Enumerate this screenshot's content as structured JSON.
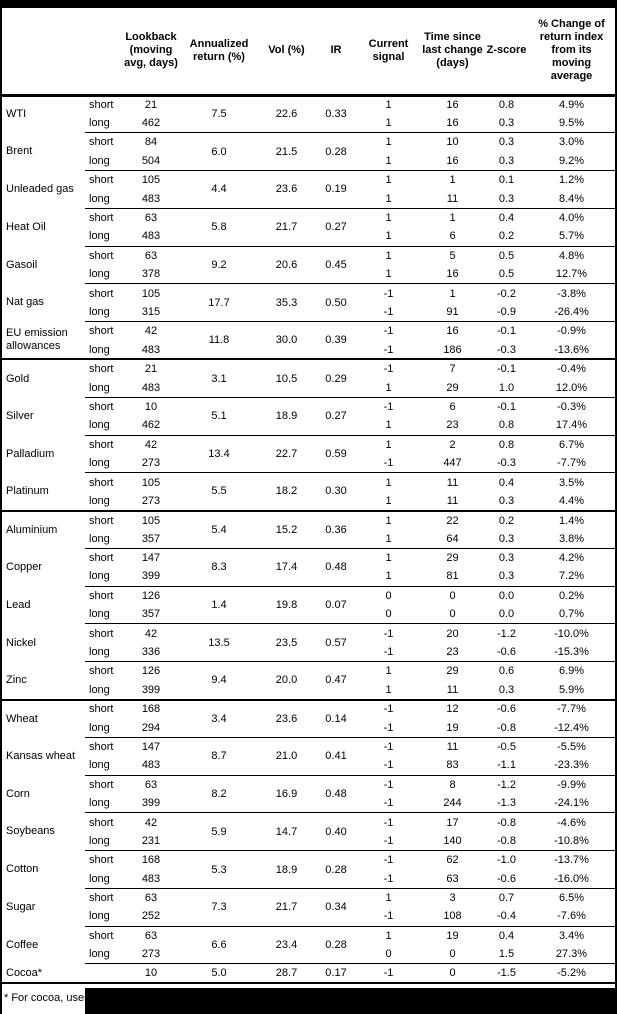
{
  "table": {
    "column_headers": [
      "",
      "",
      "Lookback\n(moving\navg, days)",
      "Annualized\nreturn (%)",
      "Vol (%)",
      "IR",
      "Current\nsignal",
      "Time since\nlast change\n(days)",
      "Z-score",
      "% Change of\nreturn index\nfrom its\nmoving\naverage"
    ],
    "sections": [
      {
        "name": "energy",
        "commodities": [
          {
            "name": "WTI",
            "annualized_return": "7.5",
            "vol": "22.6",
            "ir": "0.33",
            "rows": [
              {
                "horizon": "short",
                "lookback": "21",
                "signal": "1",
                "time_since": "16",
                "z_score": "0.8",
                "pct_change": "4.9%"
              },
              {
                "horizon": "long",
                "lookback": "462",
                "signal": "1",
                "time_since": "16",
                "z_score": "0.3",
                "pct_change": "9.5%"
              }
            ]
          },
          {
            "name": "Brent",
            "annualized_return": "6.0",
            "vol": "21.5",
            "ir": "0.28",
            "rows": [
              {
                "horizon": "short",
                "lookback": "84",
                "signal": "1",
                "time_since": "10",
                "z_score": "0.3",
                "pct_change": "3.0%"
              },
              {
                "horizon": "long",
                "lookback": "504",
                "signal": "1",
                "time_since": "16",
                "z_score": "0.3",
                "pct_change": "9.2%"
              }
            ]
          },
          {
            "name": "Unleaded gas",
            "annualized_return": "4.4",
            "vol": "23.6",
            "ir": "0.19",
            "rows": [
              {
                "horizon": "short",
                "lookback": "105",
                "signal": "1",
                "time_since": "1",
                "z_score": "0.1",
                "pct_change": "1.2%"
              },
              {
                "horizon": "long",
                "lookback": "483",
                "signal": "1",
                "time_since": "11",
                "z_score": "0.3",
                "pct_change": "8.4%"
              }
            ]
          },
          {
            "name": "Heat Oil",
            "annualized_return": "5.8",
            "vol": "21.7",
            "ir": "0.27",
            "rows": [
              {
                "horizon": "short",
                "lookback": "63",
                "signal": "1",
                "time_since": "1",
                "z_score": "0.4",
                "pct_change": "4.0%"
              },
              {
                "horizon": "long",
                "lookback": "483",
                "signal": "1",
                "time_since": "6",
                "z_score": "0.2",
                "pct_change": "5.7%"
              }
            ]
          },
          {
            "name": "Gasoil",
            "annualized_return": "9.2",
            "vol": "20.6",
            "ir": "0.45",
            "rows": [
              {
                "horizon": "short",
                "lookback": "63",
                "signal": "1",
                "time_since": "5",
                "z_score": "0.5",
                "pct_change": "4.8%"
              },
              {
                "horizon": "long",
                "lookback": "378",
                "signal": "1",
                "time_since": "16",
                "z_score": "0.5",
                "pct_change": "12.7%"
              }
            ]
          },
          {
            "name": "Nat gas",
            "annualized_return": "17.7",
            "vol": "35.3",
            "ir": "0.50",
            "rows": [
              {
                "horizon": "short",
                "lookback": "105",
                "signal": "-1",
                "time_since": "1",
                "z_score": "-0.2",
                "pct_change": "-3.8%"
              },
              {
                "horizon": "long",
                "lookback": "315",
                "signal": "-1",
                "time_since": "91",
                "z_score": "-0.9",
                "pct_change": "-26.4%"
              }
            ]
          },
          {
            "name": "EU emission allowances",
            "annualized_return": "11.8",
            "vol": "30.0",
            "ir": "0.39",
            "rows": [
              {
                "horizon": "short",
                "lookback": "42",
                "signal": "-1",
                "time_since": "16",
                "z_score": "-0.1",
                "pct_change": "-0.9%"
              },
              {
                "horizon": "long",
                "lookback": "483",
                "signal": "-1",
                "time_since": "186",
                "z_score": "-0.3",
                "pct_change": "-13.6%"
              }
            ]
          }
        ]
      },
      {
        "name": "precious-metals",
        "commodities": [
          {
            "name": "Gold",
            "annualized_return": "3.1",
            "vol": "10.5",
            "ir": "0.29",
            "rows": [
              {
                "horizon": "short",
                "lookback": "21",
                "signal": "-1",
                "time_since": "7",
                "z_score": "-0.1",
                "pct_change": "-0.4%"
              },
              {
                "horizon": "long",
                "lookback": "483",
                "signal": "1",
                "time_since": "29",
                "z_score": "1.0",
                "pct_change": "12.0%"
              }
            ]
          },
          {
            "name": "Silver",
            "annualized_return": "5.1",
            "vol": "18.9",
            "ir": "0.27",
            "rows": [
              {
                "horizon": "short",
                "lookback": "10",
                "signal": "-1",
                "time_since": "6",
                "z_score": "-0.1",
                "pct_change": "-0.3%"
              },
              {
                "horizon": "long",
                "lookback": "462",
                "signal": "1",
                "time_since": "23",
                "z_score": "0.8",
                "pct_change": "17.4%"
              }
            ]
          },
          {
            "name": "Palladium",
            "annualized_return": "13.4",
            "vol": "22.7",
            "ir": "0.59",
            "rows": [
              {
                "horizon": "short",
                "lookback": "42",
                "signal": "1",
                "time_since": "2",
                "z_score": "0.8",
                "pct_change": "6.7%"
              },
              {
                "horizon": "long",
                "lookback": "273",
                "signal": "-1",
                "time_since": "447",
                "z_score": "-0.3",
                "pct_change": "-7.7%"
              }
            ]
          },
          {
            "name": "Platinum",
            "annualized_return": "5.5",
            "vol": "18.2",
            "ir": "0.30",
            "rows": [
              {
                "horizon": "short",
                "lookback": "105",
                "signal": "1",
                "time_since": "11",
                "z_score": "0.4",
                "pct_change": "3.5%"
              },
              {
                "horizon": "long",
                "lookback": "273",
                "signal": "1",
                "time_since": "11",
                "z_score": "0.3",
                "pct_change": "4.4%"
              }
            ]
          }
        ]
      },
      {
        "name": "base-metals",
        "commodities": [
          {
            "name": "Aluminium",
            "annualized_return": "5.4",
            "vol": "15.2",
            "ir": "0.36",
            "rows": [
              {
                "horizon": "short",
                "lookback": "105",
                "signal": "1",
                "time_since": "22",
                "z_score": "0.2",
                "pct_change": "1.4%"
              },
              {
                "horizon": "long",
                "lookback": "357",
                "signal": "1",
                "time_since": "64",
                "z_score": "0.3",
                "pct_change": "3.8%"
              }
            ]
          },
          {
            "name": "Copper",
            "annualized_return": "8.3",
            "vol": "17.4",
            "ir": "0.48",
            "rows": [
              {
                "horizon": "short",
                "lookback": "147",
                "signal": "1",
                "time_since": "29",
                "z_score": "0.3",
                "pct_change": "4.2%"
              },
              {
                "horizon": "long",
                "lookback": "399",
                "signal": "1",
                "time_since": "81",
                "z_score": "0.3",
                "pct_change": "7.2%"
              }
            ]
          },
          {
            "name": "Lead",
            "annualized_return": "1.4",
            "vol": "19.8",
            "ir": "0.07",
            "rows": [
              {
                "horizon": "short",
                "lookback": "126",
                "signal": "0",
                "time_since": "0",
                "z_score": "0.0",
                "pct_change": "0.2%"
              },
              {
                "horizon": "long",
                "lookback": "357",
                "signal": "0",
                "time_since": "0",
                "z_score": "0.0",
                "pct_change": "0.7%"
              }
            ]
          },
          {
            "name": "Nickel",
            "annualized_return": "13.5",
            "vol": "23.5",
            "ir": "0.57",
            "rows": [
              {
                "horizon": "short",
                "lookback": "42",
                "signal": "-1",
                "time_since": "20",
                "z_score": "-1.2",
                "pct_change": "-10.0%"
              },
              {
                "horizon": "long",
                "lookback": "336",
                "signal": "-1",
                "time_since": "23",
                "z_score": "-0.6",
                "pct_change": "-15.3%"
              }
            ]
          },
          {
            "name": "Zinc",
            "annualized_return": "9.4",
            "vol": "20.0",
            "ir": "0.47",
            "rows": [
              {
                "horizon": "short",
                "lookback": "126",
                "signal": "1",
                "time_since": "29",
                "z_score": "0.6",
                "pct_change": "6.9%"
              },
              {
                "horizon": "long",
                "lookback": "399",
                "signal": "1",
                "time_since": "11",
                "z_score": "0.3",
                "pct_change": "5.9%"
              }
            ]
          }
        ]
      },
      {
        "name": "agriculture",
        "commodities": [
          {
            "name": "Wheat",
            "annualized_return": "3.4",
            "vol": "23.6",
            "ir": "0.14",
            "rows": [
              {
                "horizon": "short",
                "lookback": "168",
                "signal": "-1",
                "time_since": "12",
                "z_score": "-0.6",
                "pct_change": "-7.7%"
              },
              {
                "horizon": "long",
                "lookback": "294",
                "signal": "-1",
                "time_since": "19",
                "z_score": "-0.8",
                "pct_change": "-12.4%"
              }
            ]
          },
          {
            "name": "Kansas wheat",
            "annualized_return": "8.7",
            "vol": "21.0",
            "ir": "0.41",
            "rows": [
              {
                "horizon": "short",
                "lookback": "147",
                "signal": "-1",
                "time_since": "11",
                "z_score": "-0.5",
                "pct_change": "-5.5%"
              },
              {
                "horizon": "long",
                "lookback": "483",
                "signal": "-1",
                "time_since": "83",
                "z_score": "-1.1",
                "pct_change": "-23.3%"
              }
            ]
          },
          {
            "name": "Corn",
            "annualized_return": "8.2",
            "vol": "16.9",
            "ir": "0.48",
            "rows": [
              {
                "horizon": "short",
                "lookback": "63",
                "signal": "-1",
                "time_since": "8",
                "z_score": "-1.2",
                "pct_change": "-9.9%"
              },
              {
                "horizon": "long",
                "lookback": "399",
                "signal": "-1",
                "time_since": "244",
                "z_score": "-1.3",
                "pct_change": "-24.1%"
              }
            ]
          },
          {
            "name": "Soybeans",
            "annualized_return": "5.9",
            "vol": "14.7",
            "ir": "0.40",
            "rows": [
              {
                "horizon": "short",
                "lookback": "42",
                "signal": "-1",
                "time_since": "17",
                "z_score": "-0.8",
                "pct_change": "-4.6%"
              },
              {
                "horizon": "long",
                "lookback": "231",
                "signal": "-1",
                "time_since": "140",
                "z_score": "-0.8",
                "pct_change": "-10.8%"
              }
            ]
          },
          {
            "name": "Cotton",
            "annualized_return": "5.3",
            "vol": "18.9",
            "ir": "0.28",
            "rows": [
              {
                "horizon": "short",
                "lookback": "168",
                "signal": "-1",
                "time_since": "62",
                "z_score": "-1.0",
                "pct_change": "-13.7%"
              },
              {
                "horizon": "long",
                "lookback": "483",
                "signal": "-1",
                "time_since": "63",
                "z_score": "-0.6",
                "pct_change": "-16.0%"
              }
            ]
          },
          {
            "name": "Sugar",
            "annualized_return": "7.3",
            "vol": "21.7",
            "ir": "0.34",
            "rows": [
              {
                "horizon": "short",
                "lookback": "63",
                "signal": "1",
                "time_since": "3",
                "z_score": "0.7",
                "pct_change": "6.5%"
              },
              {
                "horizon": "long",
                "lookback": "252",
                "signal": "-1",
                "time_since": "108",
                "z_score": "-0.4",
                "pct_change": "-7.6%"
              }
            ]
          },
          {
            "name": "Coffee",
            "annualized_return": "6.6",
            "vol": "23.4",
            "ir": "0.28",
            "rows": [
              {
                "horizon": "short",
                "lookback": "63",
                "signal": "1",
                "time_since": "19",
                "z_score": "0.4",
                "pct_change": "3.4%"
              },
              {
                "horizon": "long",
                "lookback": "273",
                "signal": "0",
                "time_since": "0",
                "z_score": "1.5",
                "pct_change": "27.3%"
              }
            ]
          },
          {
            "name": "Cocoa*",
            "annualized_return": "5.0",
            "vol": "28.7",
            "ir": "0.17",
            "rows": [
              {
                "horizon": "",
                "lookback": "10",
                "signal": "-1",
                "time_since": "0",
                "z_score": "-1.5",
                "pct_change": "-5.2%"
              }
            ]
          }
        ]
      }
    ]
  },
  "footnote": {
    "visible_text": "* For cocoa, uses c",
    "redacted": true
  }
}
